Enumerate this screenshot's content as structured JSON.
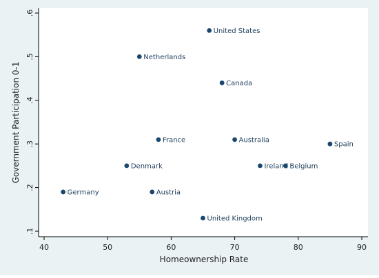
{
  "colors": {
    "outer_background": "#eaf2f3",
    "plot_background": "#ffffff",
    "marker": "#1a476f",
    "label": "#1c3d5a",
    "axis": "#000000"
  },
  "chart_data": {
    "type": "scatter",
    "title": "",
    "xlabel": "Homeownership Rate",
    "ylabel": "Government Participation 0-1",
    "xlim": [
      40,
      90
    ],
    "ylim": [
      0.1,
      0.6
    ],
    "xticks": [
      40,
      50,
      60,
      70,
      80,
      90
    ],
    "xtick_labels": [
      "40",
      "50",
      "60",
      "70",
      "80",
      "90"
    ],
    "yticks": [
      0.1,
      0.2,
      0.3,
      0.4,
      0.5,
      0.6
    ],
    "ytick_labels": [
      ".1",
      ".2",
      ".3",
      ".4",
      ".5",
      ".6"
    ],
    "grid": false,
    "legend": false,
    "points": [
      {
        "label": "United States",
        "x": 66,
        "y": 0.56
      },
      {
        "label": "Netherlands",
        "x": 55,
        "y": 0.5
      },
      {
        "label": "Canada",
        "x": 68,
        "y": 0.44
      },
      {
        "label": "France",
        "x": 58,
        "y": 0.31
      },
      {
        "label": "Australia",
        "x": 70,
        "y": 0.31
      },
      {
        "label": "Spain",
        "x": 85,
        "y": 0.3
      },
      {
        "label": "Denmark",
        "x": 53,
        "y": 0.25
      },
      {
        "label": "Ireland",
        "x": 74,
        "y": 0.25
      },
      {
        "label": "Belgium",
        "x": 78,
        "y": 0.25
      },
      {
        "label": "Germany",
        "x": 43,
        "y": 0.19
      },
      {
        "label": "Austria",
        "x": 57,
        "y": 0.19
      },
      {
        "label": "United Kingdom",
        "x": 65,
        "y": 0.13
      }
    ]
  }
}
